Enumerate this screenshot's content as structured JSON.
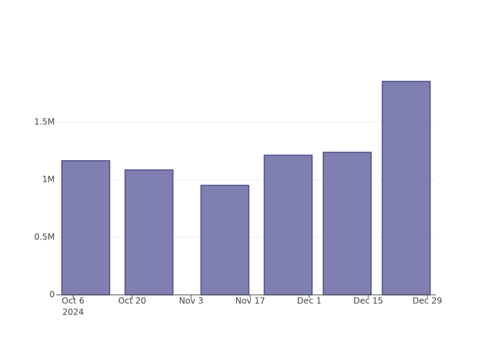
{
  "chart_data": {
    "type": "bar",
    "x": [
      "2024-10-09",
      "2024-10-24",
      "2024-11-11",
      "2024-11-26",
      "2024-12-10",
      "2024-12-24"
    ],
    "values": [
      1165000,
      1085000,
      951000,
      1213000,
      1238000,
      1854000
    ],
    "color": "#7f7fb1",
    "edge_color": "#4a4a88",
    "xlim": [
      "2024-10-02",
      "2024-12-31"
    ],
    "xticks": [
      {
        "value": "2024-10-06",
        "label": "Oct 6"
      },
      {
        "value": "2024-10-20",
        "label": "Oct 20"
      },
      {
        "value": "2024-11-03",
        "label": "Nov 3"
      },
      {
        "value": "2024-11-17",
        "label": "Nov 17"
      },
      {
        "value": "2024-12-01",
        "label": "Dec 1"
      },
      {
        "value": "2024-12-15",
        "label": "Dec 15"
      },
      {
        "value": "2024-12-29",
        "label": "Dec 29"
      }
    ],
    "xtick_year": "2024",
    "ylim": [
      0,
      1951220
    ],
    "yticks": [
      0,
      {
        "value": 500000,
        "label": "0.5M"
      },
      {
        "value": 1000000,
        "label": "1M"
      },
      {
        "value": 1500000,
        "label": "1.5M"
      }
    ],
    "grid": true
  }
}
